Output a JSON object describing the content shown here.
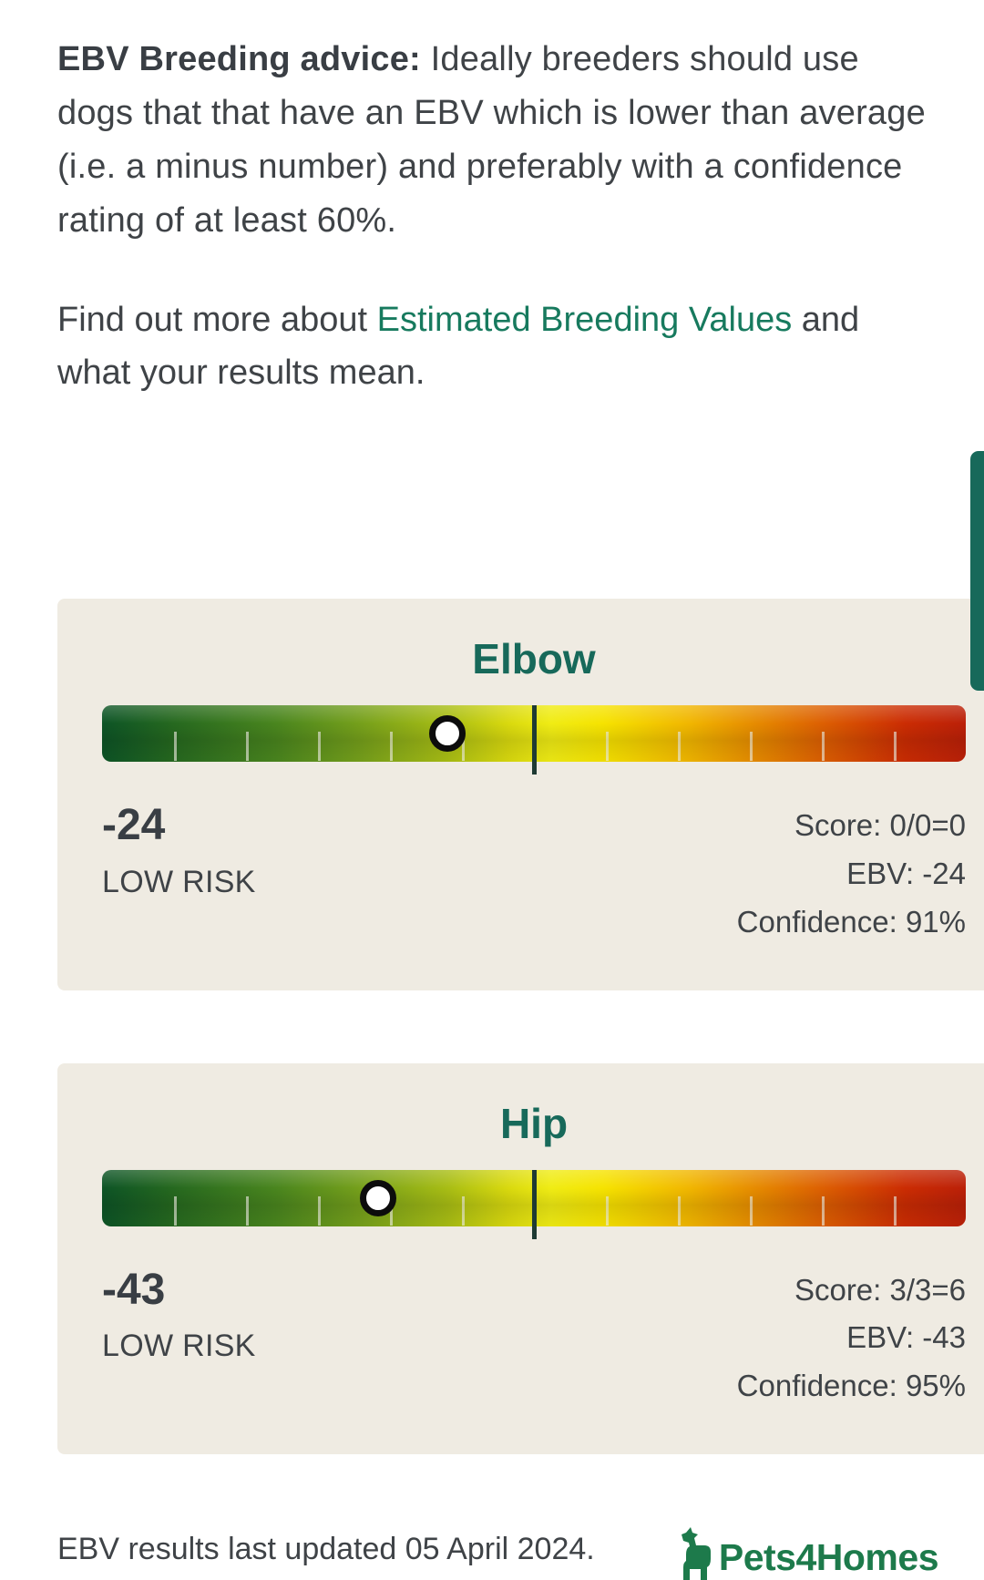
{
  "intro": {
    "advice_bold": "EBV Breeding advice:",
    "advice_text": " Ideally breeders should use dogs that that have an EBV which is lower than average (i.e. a minus number) and preferably with a confidence rating of at least 60%.",
    "find_out_prefix": "Find out more about ",
    "find_out_link": "Estimated Breeding Values",
    "find_out_suffix": " and what your results mean."
  },
  "cards": [
    {
      "title": "Elbow",
      "value": "-24",
      "risk": "LOW RISK",
      "score": "Score: 0/0=0",
      "ebv": "EBV: -24",
      "confidence": "Confidence: 91%",
      "marker_percent": 40
    },
    {
      "title": "Hip",
      "value": "-43",
      "risk": "LOW RISK",
      "score": "Score: 3/3=6",
      "ebv": "EBV: -43",
      "confidence": "Confidence: 95%",
      "marker_percent": 32
    }
  ],
  "footer": {
    "updated": "EBV results last updated 05 April 2024.",
    "brand": "Pets4Homes"
  },
  "colors": {
    "accent_green": "#17695a",
    "link_green": "#177a5e",
    "logo_green": "#1d7a4b",
    "card_background": "#efebe2",
    "text_dark": "#3f4347",
    "gauge_gradient_left": "#0d5426",
    "gauge_gradient_center": "#f0ec14",
    "gauge_gradient_right": "#bb2008",
    "gauge_divider": "#1e3a33",
    "marker_fill": "#ffffff",
    "marker_border": "#0c0c0c"
  }
}
